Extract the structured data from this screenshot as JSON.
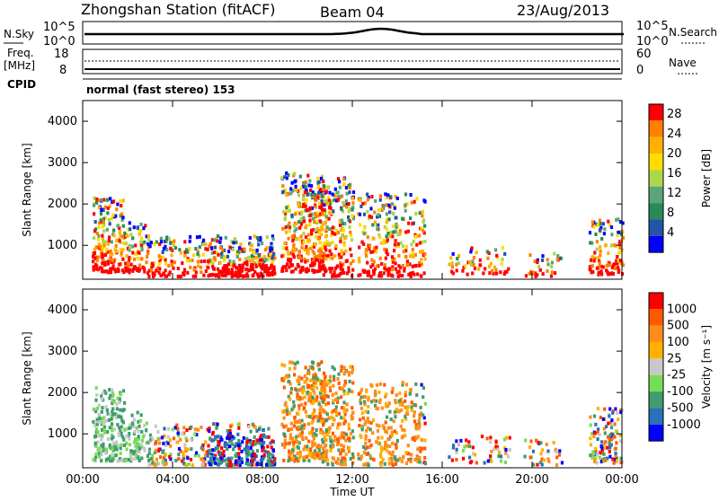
{
  "header": {
    "station": "Zhongshan Station (fitACF)",
    "beam": "Beam 04",
    "date": "23/Aug/2013"
  },
  "top_strip": {
    "left_label": "N.Sky",
    "left_ticks": [
      "10^5",
      "10^0"
    ],
    "right_label": "N.Search",
    "right_ticks": [
      "10^5",
      "10^0"
    ]
  },
  "freq_strip": {
    "left_label_1": "Freq.",
    "left_label_2": "[MHz]",
    "left_ticks": [
      "18",
      "8"
    ],
    "right_label": "Nave",
    "right_ticks": [
      "60",
      "0"
    ],
    "cpid_label": "CPID",
    "cpid_text": "normal (fast stereo) 153"
  },
  "colors": {
    "power_scale": [
      "#ff0000",
      "#ff7f00",
      "#ffb000",
      "#ffdc00",
      "#a9d84b",
      "#5aa67a",
      "#2a8a55",
      "#2354a8",
      "#0000ff"
    ],
    "velocity_scale": [
      "#ff0000",
      "#ff5a00",
      "#ff8c1a",
      "#ffb000",
      "#c8c8c8",
      "#77dd55",
      "#3e9e6e",
      "#2d6fb8",
      "#0000ff"
    ]
  },
  "chart_data": [
    {
      "type": "heatmap",
      "quantity": "power",
      "xlabel": "Time UT",
      "ylabel": "Slant Range [km]",
      "x_ticks": [
        "00:00",
        "04:00",
        "08:00",
        "12:00",
        "16:00",
        "20:00",
        "00:00"
      ],
      "y_ticks": [
        1000,
        2000,
        3000,
        4000
      ],
      "xlim": [
        0,
        24
      ],
      "ylim": [
        180,
        4500
      ],
      "colorbar_label": "Power [dB]",
      "colorbar_ticks": [
        4,
        8,
        12,
        16,
        20,
        24,
        28
      ],
      "colorbar_range": [
        0,
        30
      ]
    },
    {
      "type": "heatmap",
      "quantity": "velocity",
      "xlabel": "Time UT",
      "ylabel": "Slant Range [km]",
      "x_ticks": [
        "00:00",
        "04:00",
        "08:00",
        "12:00",
        "16:00",
        "20:00",
        "00:00"
      ],
      "y_ticks": [
        1000,
        2000,
        3000,
        4000
      ],
      "xlim": [
        0,
        24
      ],
      "ylim": [
        180,
        4500
      ],
      "colorbar_label": "Velocity [m s⁻¹]",
      "colorbar_ticks": [
        1000,
        500,
        100,
        25,
        -25,
        -100,
        -500,
        -1000
      ]
    }
  ]
}
